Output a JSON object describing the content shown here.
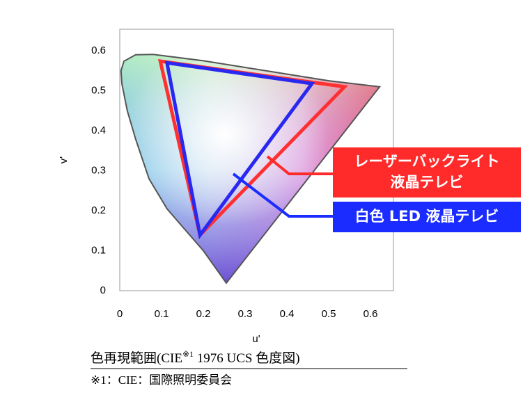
{
  "chart_data": {
    "type": "line",
    "x_label": "u'",
    "y_label": "v'",
    "xlim": [
      0,
      0.655
    ],
    "ylim": [
      0,
      0.654
    ],
    "xticks": [
      0,
      0.1,
      0.2,
      0.3,
      0.4,
      0.5,
      0.6
    ],
    "yticks": [
      0,
      0.1,
      0.2,
      0.3,
      0.4,
      0.5,
      0.6
    ],
    "locus": {
      "color": "#555555",
      "x": [
        0.255,
        0.2,
        0.15,
        0.113,
        0.07,
        0.038,
        0.018,
        0.005,
        0.003,
        0.01,
        0.038,
        0.08,
        0.2,
        0.35,
        0.5,
        0.622
      ],
      "values": [
        0.019,
        0.1,
        0.16,
        0.205,
        0.28,
        0.379,
        0.45,
        0.518,
        0.55,
        0.574,
        0.59,
        0.591,
        0.575,
        0.55,
        0.525,
        0.51
      ]
    },
    "series": [
      {
        "color": "#ff3030",
        "x": [
          0.097,
          0.538,
          0.192
        ],
        "values": [
          0.574,
          0.51,
          0.139
        ]
      },
      {
        "color": "#2828f0",
        "x": [
          0.113,
          0.46,
          0.192
        ],
        "values": [
          0.57,
          0.518,
          0.139
        ]
      }
    ],
    "annotations": [
      {
        "lines": [
          "レーザーバックライト",
          "液晶テレビ"
        ],
        "color": "#ff2a2a"
      },
      {
        "lines": [
          "白色 LED 液晶テレビ"
        ],
        "color": "#1a2cff"
      }
    ],
    "caption": {
      "parts": [
        "色再現範囲(CIE",
        "※1",
        " 1976 UCS  色度図)"
      ],
      "note": "※1：CIE：国際照明委員会"
    }
  }
}
